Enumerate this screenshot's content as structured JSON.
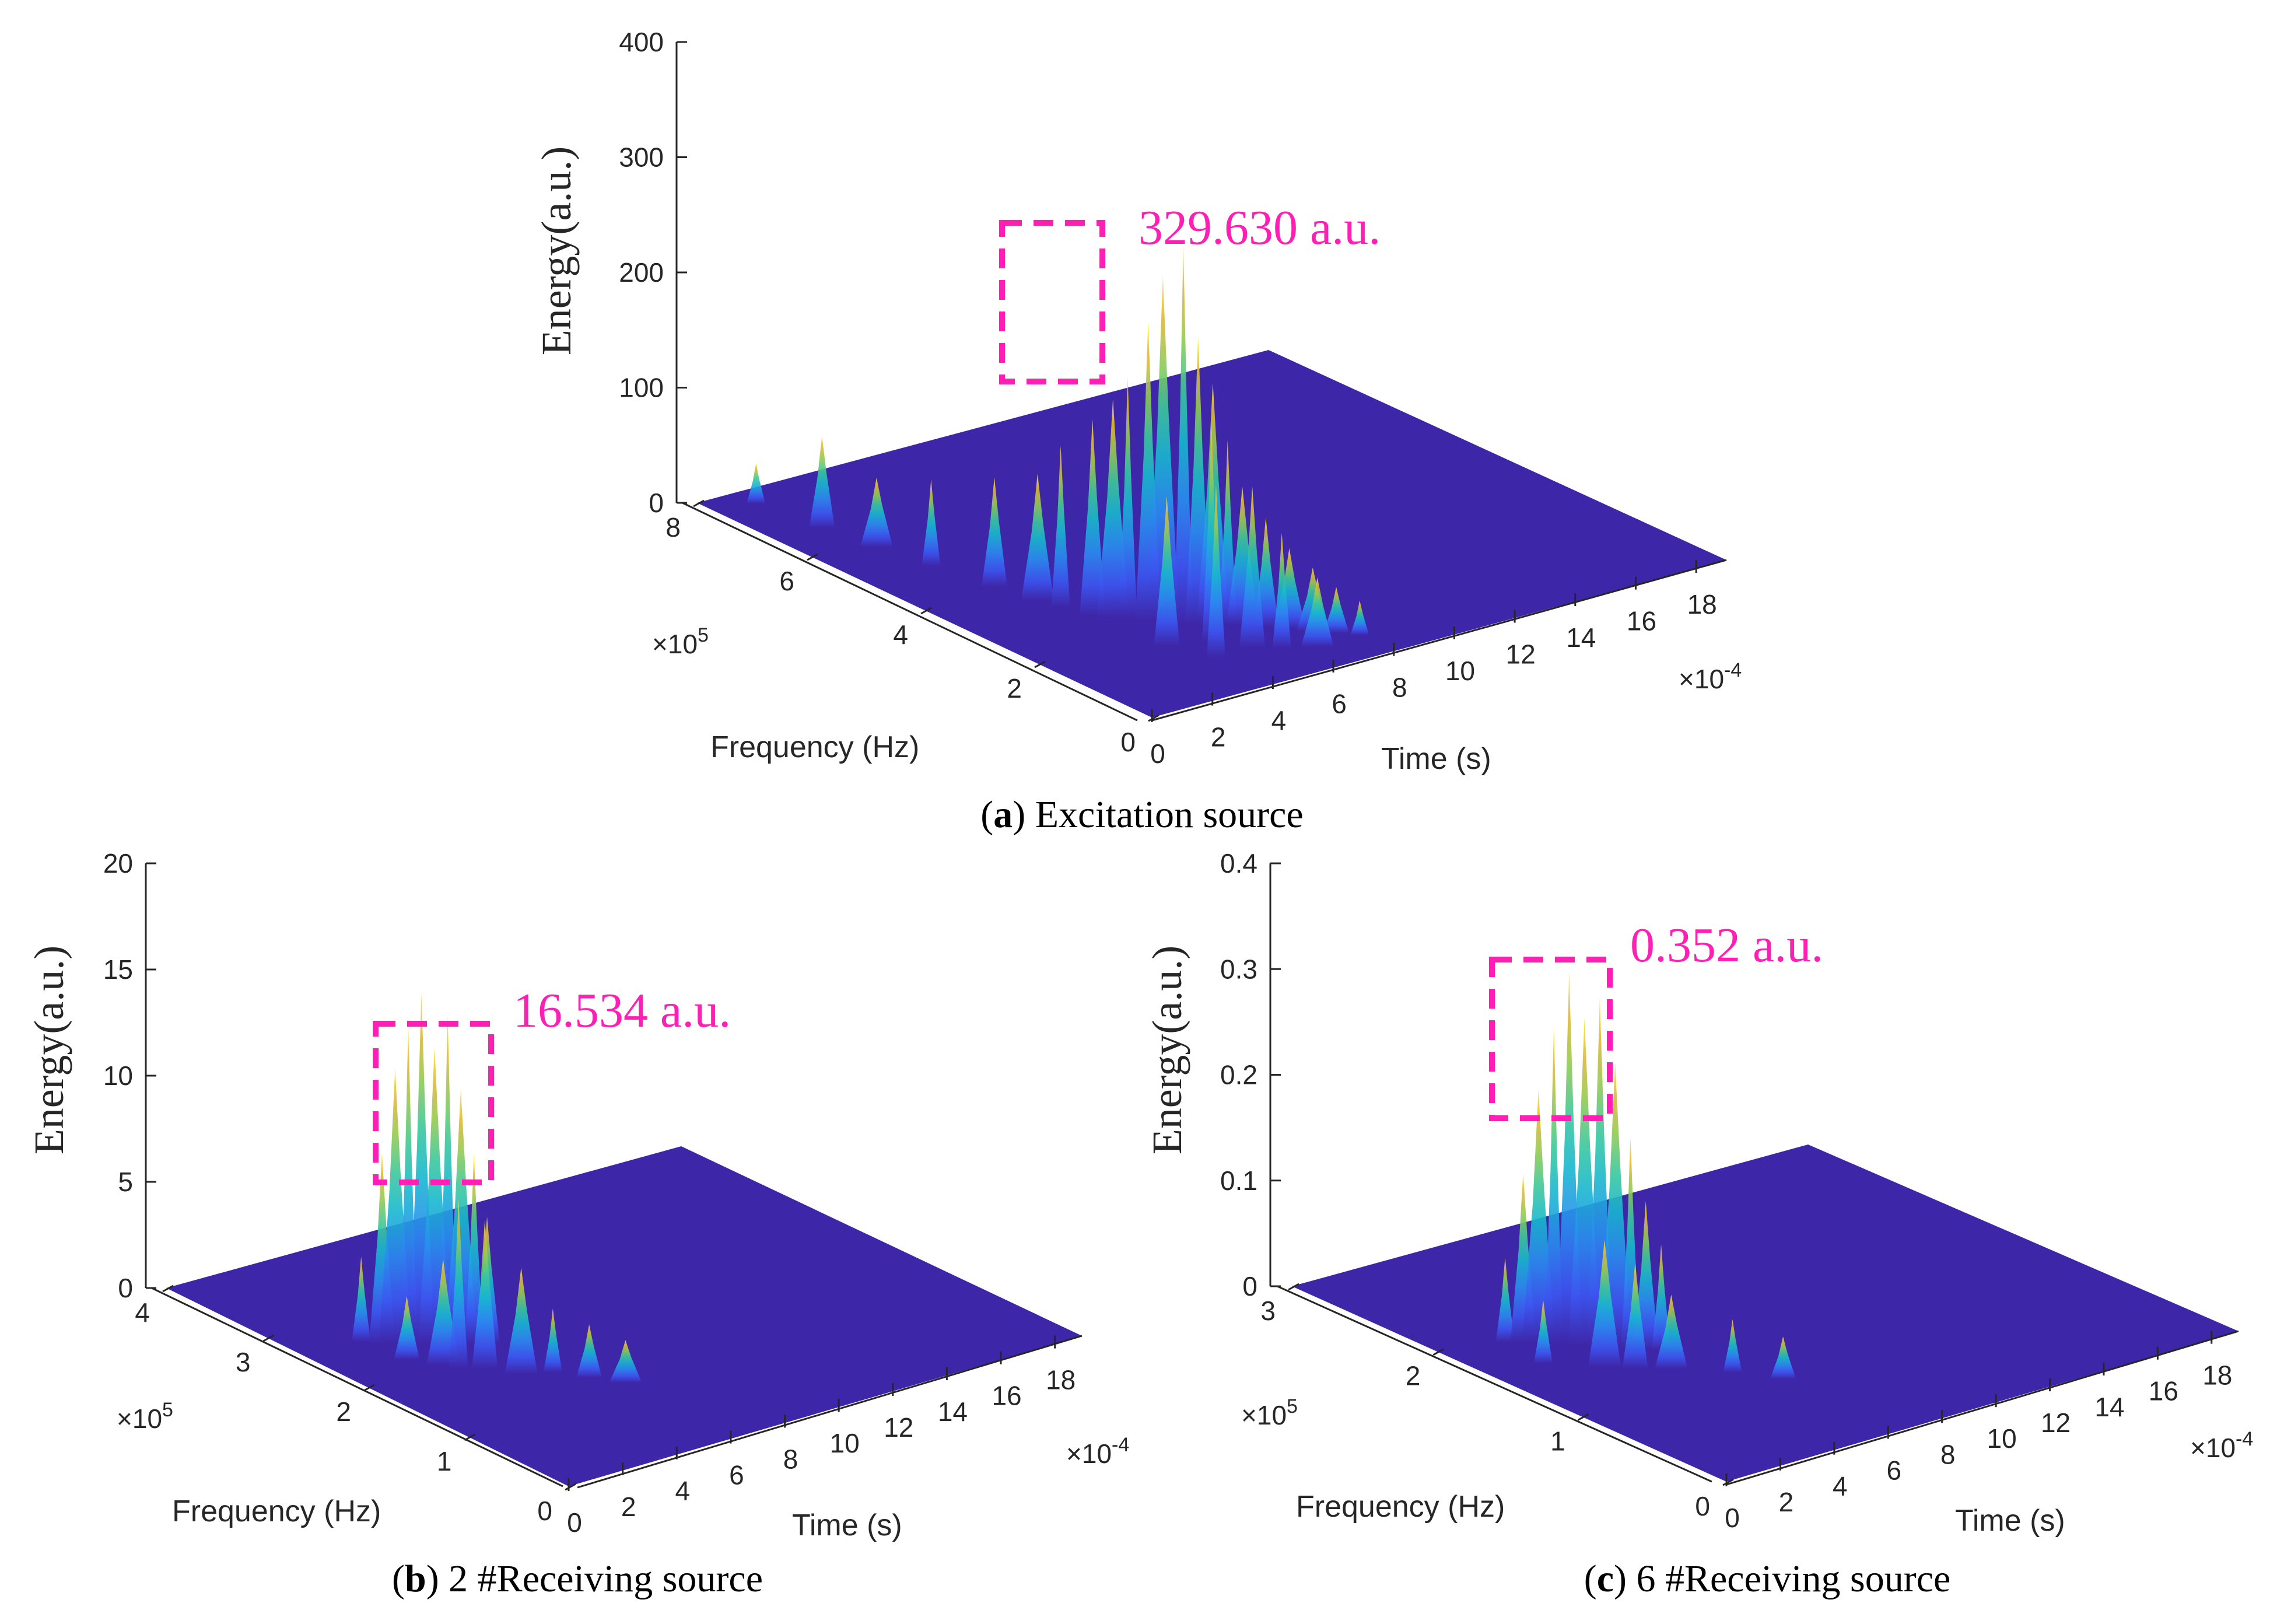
{
  "colors": {
    "floor": "#3e26a8",
    "annotation": "#ff1fb4",
    "colormap": [
      "#3e26a8",
      "#3c55f0",
      "#2a8cf0",
      "#18b8cf",
      "#3ec89a",
      "#98ca50",
      "#e0b83a",
      "#f8ea28"
    ]
  },
  "chart_data": [
    {
      "type": "surface3d",
      "caption_letter": "a",
      "caption_rest": ") Excitation source",
      "zlabel": "Energy(a.u.)",
      "ylabel": "Frequency (Hz)",
      "xlabel": "Time (s)",
      "x_exp": "×10",
      "x_exp_power": "-4",
      "y_exp": "×10",
      "y_exp_power": "5",
      "x_ticks": [
        "0",
        "2",
        "4",
        "6",
        "8",
        "10",
        "12",
        "14",
        "16",
        "18"
      ],
      "y_ticks": [
        "0",
        "2",
        "4",
        "6",
        "8"
      ],
      "z_ticks": [
        "0",
        "100",
        "200",
        "300",
        "400"
      ],
      "xlim": [
        0,
        19
      ],
      "ylim": [
        0,
        8
      ],
      "zlim": [
        0,
        400
      ],
      "peak_value": 329.63,
      "peak_label": "329.630 a.u.",
      "spikes": [
        {
          "t": 1.2,
          "f": 7.6,
          "e": 35
        },
        {
          "t": 1.5,
          "f": 6.6,
          "e": 80
        },
        {
          "t": 1.8,
          "f": 5.8,
          "e": 60
        },
        {
          "t": 2.1,
          "f": 5.0,
          "e": 75
        },
        {
          "t": 2.5,
          "f": 4.1,
          "e": 95
        },
        {
          "t": 2.8,
          "f": 3.5,
          "e": 110
        },
        {
          "t": 3.0,
          "f": 3.2,
          "e": 140
        },
        {
          "t": 3.3,
          "f": 2.8,
          "e": 170
        },
        {
          "t": 3.6,
          "f": 2.6,
          "e": 190
        },
        {
          "t": 3.9,
          "f": 2.5,
          "e": 210
        },
        {
          "t": 4.2,
          "f": 2.3,
          "e": 260
        },
        {
          "t": 4.5,
          "f": 2.2,
          "e": 300
        },
        {
          "t": 4.8,
          "f": 2.0,
          "e": 329.63
        },
        {
          "t": 5.1,
          "f": 1.9,
          "e": 250
        },
        {
          "t": 5.4,
          "f": 1.8,
          "e": 210
        },
        {
          "t": 5.7,
          "f": 1.7,
          "e": 160
        },
        {
          "t": 6.0,
          "f": 1.6,
          "e": 120
        },
        {
          "t": 6.4,
          "f": 1.4,
          "e": 95
        },
        {
          "t": 6.8,
          "f": 1.2,
          "e": 70
        },
        {
          "t": 7.2,
          "f": 1.0,
          "e": 55
        },
        {
          "t": 7.6,
          "f": 0.8,
          "e": 40
        },
        {
          "t": 8.0,
          "f": 0.6,
          "e": 30
        },
        {
          "t": 4.0,
          "f": 1.0,
          "e": 150
        },
        {
          "t": 4.6,
          "f": 1.4,
          "e": 190
        },
        {
          "t": 5.2,
          "f": 1.0,
          "e": 140
        },
        {
          "t": 5.8,
          "f": 0.8,
          "e": 100
        },
        {
          "t": 3.5,
          "f": 1.6,
          "e": 130
        },
        {
          "t": 6.6,
          "f": 0.6,
          "e": 60
        }
      ]
    },
    {
      "type": "surface3d",
      "caption_letter": "b",
      "caption_rest": ") 2 #Receiving source",
      "zlabel": "Energy(a.u.)",
      "ylabel": "Frequency (Hz)",
      "xlabel": "Time (s)",
      "x_exp": "×10",
      "x_exp_power": "-4",
      "y_exp": "×10",
      "y_exp_power": "5",
      "x_ticks": [
        "0",
        "2",
        "4",
        "6",
        "8",
        "10",
        "12",
        "14",
        "16",
        "18"
      ],
      "y_ticks": [
        "0",
        "1",
        "2",
        "3",
        "4"
      ],
      "z_ticks": [
        "0",
        "5",
        "10",
        "15",
        "20"
      ],
      "xlim": [
        0,
        19
      ],
      "ylim": [
        0,
        4
      ],
      "zlim": [
        0,
        20
      ],
      "peak_value": 16.534,
      "peak_label": "16.534 a.u.",
      "spikes": [
        {
          "t": 2.0,
          "f": 2.6,
          "e": 4
        },
        {
          "t": 2.4,
          "f": 2.5,
          "e": 9
        },
        {
          "t": 2.7,
          "f": 2.45,
          "e": 13
        },
        {
          "t": 3.0,
          "f": 2.4,
          "e": 15
        },
        {
          "t": 3.3,
          "f": 2.35,
          "e": 16.534
        },
        {
          "t": 3.6,
          "f": 2.3,
          "e": 14
        },
        {
          "t": 3.9,
          "f": 2.25,
          "e": 15.5
        },
        {
          "t": 4.2,
          "f": 2.2,
          "e": 12
        },
        {
          "t": 4.5,
          "f": 2.15,
          "e": 9
        },
        {
          "t": 4.8,
          "f": 2.1,
          "e": 6
        },
        {
          "t": 3.0,
          "f": 1.9,
          "e": 8
        },
        {
          "t": 3.6,
          "f": 1.8,
          "e": 7
        },
        {
          "t": 4.2,
          "f": 1.6,
          "e": 5
        },
        {
          "t": 5.0,
          "f": 1.5,
          "e": 3
        },
        {
          "t": 5.6,
          "f": 1.3,
          "e": 2.5
        },
        {
          "t": 6.2,
          "f": 1.1,
          "e": 2
        },
        {
          "t": 2.2,
          "f": 2.2,
          "e": 3
        },
        {
          "t": 2.8,
          "f": 2.0,
          "e": 5
        }
      ]
    },
    {
      "type": "surface3d",
      "caption_letter": "c",
      "caption_rest": ") 6 #Receiving source",
      "zlabel": "Energy(a.u.)",
      "ylabel": "Frequency (Hz)",
      "xlabel": "Time (s)",
      "x_exp": "×10",
      "x_exp_power": "-4",
      "y_exp": "×10",
      "y_exp_power": "5",
      "x_ticks": [
        "0",
        "2",
        "4",
        "6",
        "8",
        "10",
        "12",
        "14",
        "16",
        "18"
      ],
      "y_ticks": [
        "0",
        "1",
        "2",
        "3"
      ],
      "z_ticks": [
        "0",
        "0.1",
        "0.2",
        "0.3",
        "0.4"
      ],
      "xlim": [
        0,
        19
      ],
      "ylim": [
        0,
        3
      ],
      "zlim": [
        0,
        0.4
      ],
      "peak_value": 0.352,
      "peak_label": "0.352 a.u.",
      "spikes": [
        {
          "t": 2.0,
          "f": 1.9,
          "e": 0.08
        },
        {
          "t": 2.4,
          "f": 1.85,
          "e": 0.16
        },
        {
          "t": 2.7,
          "f": 1.8,
          "e": 0.24
        },
        {
          "t": 3.0,
          "f": 1.75,
          "e": 0.3
        },
        {
          "t": 3.3,
          "f": 1.7,
          "e": 0.352
        },
        {
          "t": 3.6,
          "f": 1.65,
          "e": 0.31
        },
        {
          "t": 3.9,
          "f": 1.6,
          "e": 0.33
        },
        {
          "t": 4.2,
          "f": 1.55,
          "e": 0.27
        },
        {
          "t": 4.5,
          "f": 1.5,
          "e": 0.2
        },
        {
          "t": 4.8,
          "f": 1.45,
          "e": 0.14
        },
        {
          "t": 5.1,
          "f": 1.4,
          "e": 0.1
        },
        {
          "t": 3.0,
          "f": 1.4,
          "e": 0.12
        },
        {
          "t": 3.6,
          "f": 1.3,
          "e": 0.1
        },
        {
          "t": 4.4,
          "f": 1.2,
          "e": 0.07
        },
        {
          "t": 5.6,
          "f": 1.0,
          "e": 0.05
        },
        {
          "t": 6.4,
          "f": 0.8,
          "e": 0.04
        },
        {
          "t": 1.8,
          "f": 1.6,
          "e": 0.06
        }
      ]
    }
  ]
}
